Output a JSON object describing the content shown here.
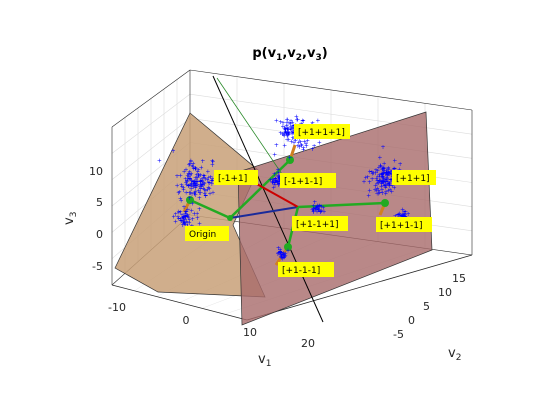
{
  "chart_data": {
    "type": "scatter",
    "title": "p(v",
    "title_parts": [
      "p(v",
      "1",
      ",v",
      "2",
      ",v",
      "3",
      ")"
    ],
    "xlabel": "v",
    "xlabel_sub": "1",
    "ylabel": "v",
    "ylabel_sub": "2",
    "zlabel": "v",
    "zlabel_sub": "3",
    "xticks": [
      "-10",
      "0",
      "10",
      "20"
    ],
    "yticks": [
      "-5",
      "0",
      "5",
      "10",
      "15"
    ],
    "zticks": [
      "-5",
      "0",
      "5",
      "10"
    ],
    "grid": true,
    "point_color": "#0000ff",
    "label_bg": "#ffff00",
    "plane_colors": [
      "#c8a078",
      "#b07878"
    ],
    "clusters": [
      {
        "label": "[+1+1+1]",
        "n": 140
      },
      {
        "label": "[-1+1]",
        "n": 140
      },
      {
        "label": "[+1+1]",
        "n": 140
      },
      {
        "label": "[-1+1-1]",
        "n": 40
      },
      {
        "label": "[+1-1+1]",
        "n": 30
      },
      {
        "label": "[+1+1-1]",
        "n": 30
      },
      {
        "label": "[+1-1-1]",
        "n": 30
      },
      {
        "label": "Origin",
        "n": 50
      }
    ]
  }
}
